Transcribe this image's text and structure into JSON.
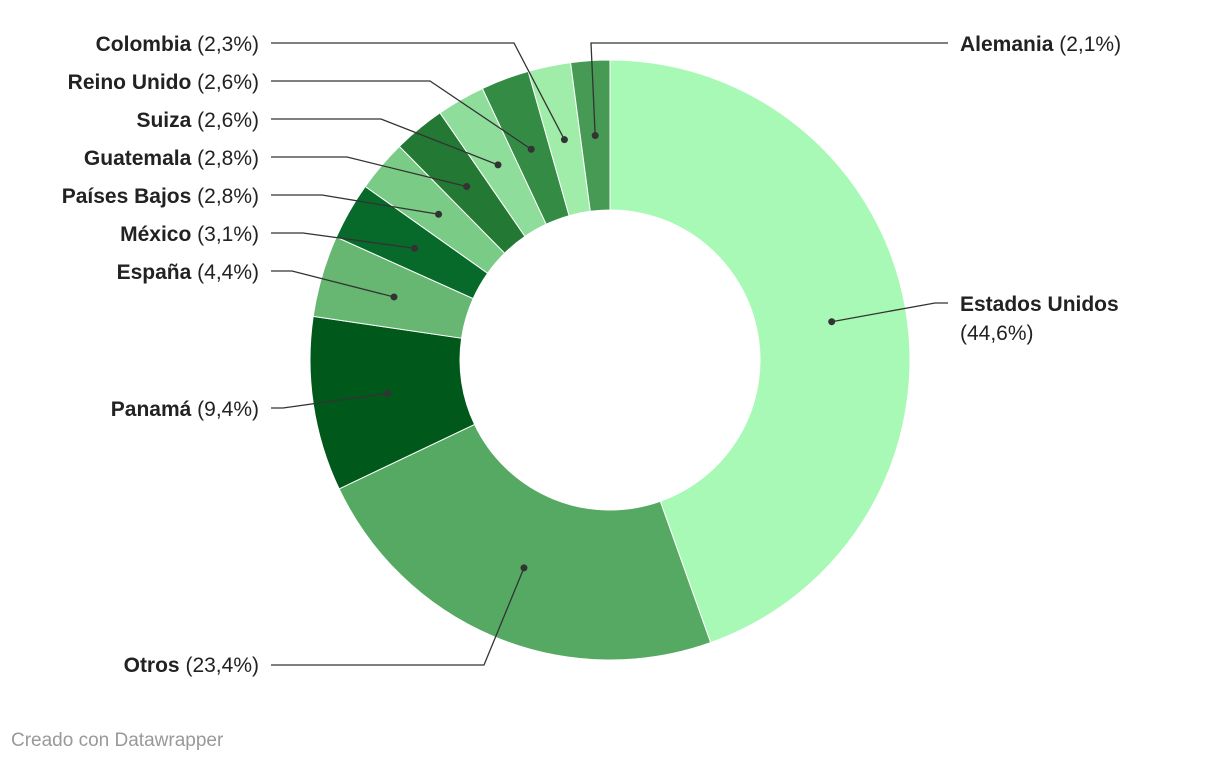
{
  "chart_data": {
    "type": "pie",
    "donut": true,
    "categories": [
      "Estados Unidos",
      "Otros",
      "Panamá",
      "España",
      "México",
      "Países Bajos",
      "Guatemala",
      "Suiza",
      "Reino Unido",
      "Colombia",
      "Alemania"
    ],
    "values": [
      44.6,
      23.4,
      9.4,
      4.4,
      3.1,
      2.8,
      2.8,
      2.6,
      2.6,
      2.3,
      2.1
    ],
    "value_labels": [
      "(44,6%)",
      "(23,4%)",
      "(9,4%)",
      "(4,4%)",
      "(3,1%)",
      "(2,8%)",
      "(2,8%)",
      "(2,6%)",
      "(2,6%)",
      "(2,3%)",
      "(2,1%)"
    ],
    "unit": "%",
    "colors": [
      "#a8f9b5",
      "#55a962",
      "#00581b",
      "#67b772",
      "#076a2a",
      "#7acb86",
      "#237933",
      "#8fdd9b",
      "#338b44",
      "#a0eca9",
      "#469a54"
    ],
    "legend": "none",
    "title": ""
  },
  "footer": {
    "credit": "Creado con Datawrapper"
  }
}
